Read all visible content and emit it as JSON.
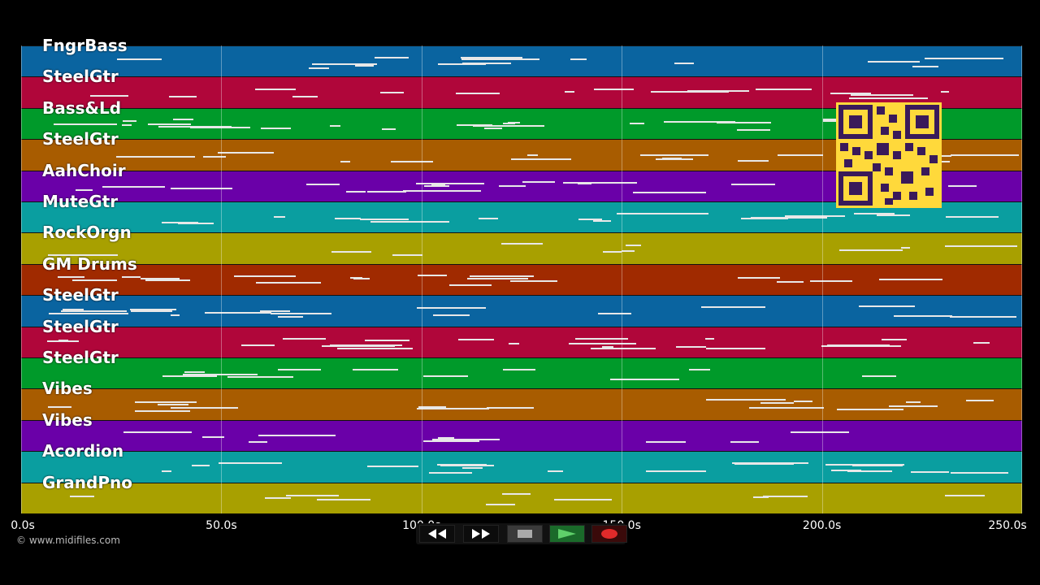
{
  "tracks": [
    {
      "name": "FngrBass",
      "color": "#0a64a0"
    },
    {
      "name": "SteelGtr",
      "color": "#b0063a"
    },
    {
      "name": "Bass&Ld",
      "color": "#009a2a"
    },
    {
      "name": "SteelGtr",
      "color": "#a85c00"
    },
    {
      "name": "AahChoir",
      "color": "#6a00a8"
    },
    {
      "name": "MuteGtr",
      "color": "#0a9ea0"
    },
    {
      "name": "RockOrgn",
      "color": "#a8a000"
    },
    {
      "name": "GM Drums",
      "color": "#a02a00"
    },
    {
      "name": "SteelGtr",
      "color": "#0a64a0"
    },
    {
      "name": "SteelGtr",
      "color": "#b0063a"
    },
    {
      "name": "SteelGtr",
      "color": "#009a2a"
    },
    {
      "name": "Vibes",
      "color": "#a85c00"
    },
    {
      "name": "Vibes",
      "color": "#6a00a8"
    },
    {
      "name": "Acordion",
      "color": "#0a9ea0"
    },
    {
      "name": "GrandPno",
      "color": "#a8a000"
    }
  ],
  "timeline": {
    "max_seconds": 250,
    "ticks": [
      "0.0s",
      "50.0s",
      "100.0s",
      "150.0s",
      "200.0s",
      "250.0s"
    ]
  },
  "copyright": "© www.midifiles.com",
  "transport": {
    "rewind": "rewind-icon",
    "forward": "fast-forward-icon",
    "stop": "stop-icon",
    "play": "play-icon",
    "record": "record-icon"
  }
}
